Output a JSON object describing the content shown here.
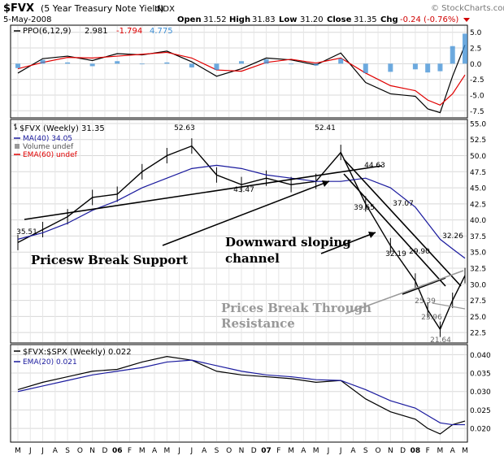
{
  "header": {
    "symbol": "$FVX",
    "description": "(5 Year Treasury Note Yield)",
    "exchange": "INDX",
    "watermark": "© StockCharts.com",
    "date": "5-May-2008",
    "open_label": "Open",
    "open": "31.52",
    "high_label": "High",
    "high": "31.83",
    "low_label": "Low",
    "low": "31.20",
    "close_label": "Close",
    "close": "31.35",
    "chg_label": "Chg",
    "chg": "-0.24 (-0.76%)"
  },
  "ppo_panel": {
    "legend_name": "PPO(6,12,9)",
    "ppo": "2.981",
    "signal": "-1.794",
    "histogram": "4.775",
    "colors": {
      "line": "#000000",
      "signal": "#e00000",
      "histogram": "#3d8fd6"
    }
  },
  "price_panel": {
    "legend_name": "$FVX (Weekly) 31.35",
    "ma": "MA(40) 34.05",
    "volume": "Volume undef",
    "ema": "EMA(60) undef",
    "colors": {
      "bars": "#000000",
      "ma": "#1a1a9e",
      "ema": "#e00000"
    }
  },
  "ratio_panel": {
    "legend_name": "$FVX:$SPX (Weekly) 0.022",
    "ema": "EMA(20) 0.021",
    "colors": {
      "line": "#000000",
      "ema": "#1a1a9e"
    }
  },
  "annotations": {
    "break_support": "Pricesw Break Support",
    "downward_channel_1": "Downward sloping",
    "downward_channel_2": "channel",
    "break_resistance_1": "Prices Break Through",
    "break_resistance_2": "Resistance"
  },
  "chart_data": [
    {
      "type": "line",
      "title": "PPO(6,12,9)",
      "ylim": [
        -8.5,
        6
      ],
      "y_ticks": [
        "5.0",
        "2.5",
        "0.0",
        "-2.5",
        "-5.0",
        "-7.5"
      ],
      "x": [
        "2005-05",
        "2005-07",
        "2005-09",
        "2005-11",
        "2006-01",
        "2006-03",
        "2006-05",
        "2006-07",
        "2006-09",
        "2006-11",
        "2007-01",
        "2007-03",
        "2007-05",
        "2007-07",
        "2007-09",
        "2007-11",
        "2008-01",
        "2008-02",
        "2008-03",
        "2008-04",
        "2008-05"
      ],
      "series": [
        {
          "name": "PPO",
          "values": [
            -1.5,
            0.8,
            1.2,
            0.5,
            1.6,
            1.4,
            2.0,
            0.3,
            -2.0,
            -0.8,
            0.9,
            0.6,
            -0.2,
            1.7,
            -3.0,
            -4.8,
            -5.2,
            -7.2,
            -7.8,
            -2.0,
            2.981
          ]
        },
        {
          "name": "Signal",
          "values": [
            -0.8,
            0.2,
            1.0,
            0.9,
            1.2,
            1.5,
            1.8,
            0.9,
            -1.0,
            -1.2,
            0.2,
            0.7,
            0.1,
            0.9,
            -1.5,
            -3.5,
            -4.3,
            -5.8,
            -6.6,
            -4.8,
            -1.794
          ]
        },
        {
          "name": "Histogram",
          "values": [
            -0.7,
            0.6,
            0.2,
            -0.4,
            0.4,
            -0.1,
            0.2,
            -0.6,
            -1.0,
            0.4,
            0.7,
            -0.1,
            -0.3,
            0.8,
            -1.5,
            -1.3,
            -0.9,
            -1.4,
            -1.2,
            2.8,
            4.775
          ]
        }
      ]
    },
    {
      "type": "line",
      "title": "$FVX (Weekly) 31.35",
      "ylim": [
        21,
        55.5
      ],
      "y_ticks": [
        "55.0",
        "52.5",
        "50.0",
        "47.5",
        "45.0",
        "42.5",
        "40.0",
        "37.5",
        "35.0",
        "32.5",
        "30.0",
        "27.5",
        "25.0",
        "22.5"
      ],
      "x": [
        "2005-05",
        "2005-07",
        "2005-09",
        "2005-11",
        "2006-01",
        "2006-03",
        "2006-05",
        "2006-07",
        "2006-09",
        "2006-11",
        "2007-01",
        "2007-03",
        "2007-05",
        "2007-07",
        "2007-09",
        "2007-11",
        "2008-01",
        "2008-02",
        "2008-03",
        "2008-04",
        "2008-05"
      ],
      "series": [
        {
          "name": "$FVX",
          "values": [
            36.5,
            38.5,
            40.5,
            43.5,
            44.0,
            47.5,
            50.0,
            51.5,
            47.0,
            45.5,
            46.5,
            45.5,
            46.0,
            50.5,
            42.5,
            36.0,
            30.5,
            26.0,
            23.0,
            27.5,
            31.35
          ]
        },
        {
          "name": "MA(40)",
          "values": [
            37.0,
            38.0,
            39.5,
            41.5,
            43.0,
            45.0,
            46.5,
            48.0,
            48.5,
            48.0,
            47.0,
            46.5,
            46.0,
            46.0,
            46.5,
            45.0,
            42.0,
            39.5,
            37.0,
            35.5,
            34.05
          ]
        }
      ],
      "labels": [
        "35.51",
        "52.63",
        "43.47",
        "52.41",
        "44.63",
        "39.65",
        "37.07",
        "32.19",
        "29.90",
        "25.39",
        "23.96",
        "21.64",
        "32.26"
      ]
    },
    {
      "type": "line",
      "title": "$FVX:$SPX (Weekly) 0.022",
      "ylim": [
        0.0165,
        0.0425
      ],
      "y_ticks": [
        "0.040",
        "0.035",
        "0.030",
        "0.025",
        "0.020"
      ],
      "x": [
        "2005-05",
        "2005-07",
        "2005-09",
        "2005-11",
        "2006-01",
        "2006-03",
        "2006-05",
        "2006-07",
        "2006-09",
        "2006-11",
        "2007-01",
        "2007-03",
        "2007-05",
        "2007-07",
        "2007-09",
        "2007-11",
        "2008-01",
        "2008-02",
        "2008-03",
        "2008-04",
        "2008-05"
      ],
      "series": [
        {
          "name": "$FVX:$SPX",
          "values": [
            0.0305,
            0.0325,
            0.034,
            0.0355,
            0.036,
            0.038,
            0.0395,
            0.0385,
            0.0355,
            0.0345,
            0.034,
            0.0335,
            0.0325,
            0.033,
            0.028,
            0.0245,
            0.0225,
            0.02,
            0.0185,
            0.021,
            0.022
          ]
        },
        {
          "name": "EMA(20)",
          "values": [
            0.03,
            0.0315,
            0.033,
            0.0345,
            0.0355,
            0.0365,
            0.038,
            0.0385,
            0.037,
            0.0355,
            0.0345,
            0.034,
            0.0332,
            0.033,
            0.0305,
            0.0275,
            0.0255,
            0.0235,
            0.0215,
            0.021,
            0.021
          ]
        }
      ]
    }
  ],
  "x_axis": {
    "labels": [
      "M",
      "J",
      "J",
      "A",
      "S",
      "O",
      "N",
      "D",
      "06",
      "F",
      "M",
      "A",
      "M",
      "J",
      "J",
      "A",
      "S",
      "O",
      "N",
      "D",
      "07",
      "F",
      "M",
      "A",
      "M",
      "J",
      "J",
      "A",
      "S",
      "O",
      "N",
      "D",
      "08",
      "F",
      "M",
      "A",
      "M"
    ],
    "bold": [
      "06",
      "07",
      "08"
    ]
  }
}
